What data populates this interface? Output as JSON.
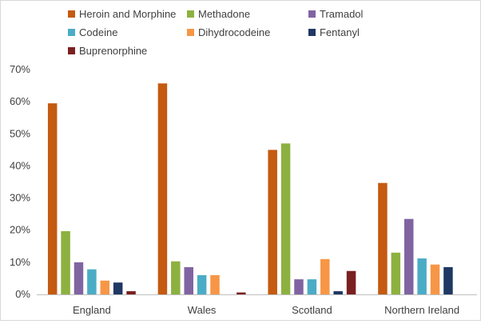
{
  "chart_data": {
    "type": "bar",
    "title": "",
    "xlabel": "",
    "ylabel": "",
    "categories": [
      "England",
      "Wales",
      "Scotland",
      "Northern Ireland"
    ],
    "ylim": [
      0,
      70
    ],
    "yticks": [
      0,
      10,
      20,
      30,
      40,
      50,
      60,
      70
    ],
    "ytick_labels": [
      "0%",
      "10%",
      "20%",
      "30%",
      "40%",
      "50%",
      "60%",
      "70%"
    ],
    "grid": false,
    "legend_position": "top",
    "series": [
      {
        "name": "Heroin and Morphine",
        "color": "#c55a11",
        "values": [
          59.5,
          65.7,
          45.0,
          34.7
        ]
      },
      {
        "name": "Methadone",
        "color": "#8db140",
        "values": [
          19.7,
          10.3,
          47.0,
          13.0
        ]
      },
      {
        "name": "Tramadol",
        "color": "#8064a2",
        "values": [
          10.0,
          8.5,
          4.7,
          23.5
        ]
      },
      {
        "name": "Codeine",
        "color": "#4bacc6",
        "values": [
          7.8,
          6.0,
          4.7,
          11.2
        ]
      },
      {
        "name": "Dihydrocodeine",
        "color": "#f79646",
        "values": [
          4.3,
          6.0,
          11.0,
          9.3
        ]
      },
      {
        "name": "Fentanyl",
        "color": "#1f3864",
        "values": [
          3.7,
          0.0,
          1.0,
          8.5
        ]
      },
      {
        "name": "Buprenorphine",
        "color": "#7b2020",
        "values": [
          1.0,
          0.6,
          7.3,
          0.0
        ]
      }
    ]
  }
}
